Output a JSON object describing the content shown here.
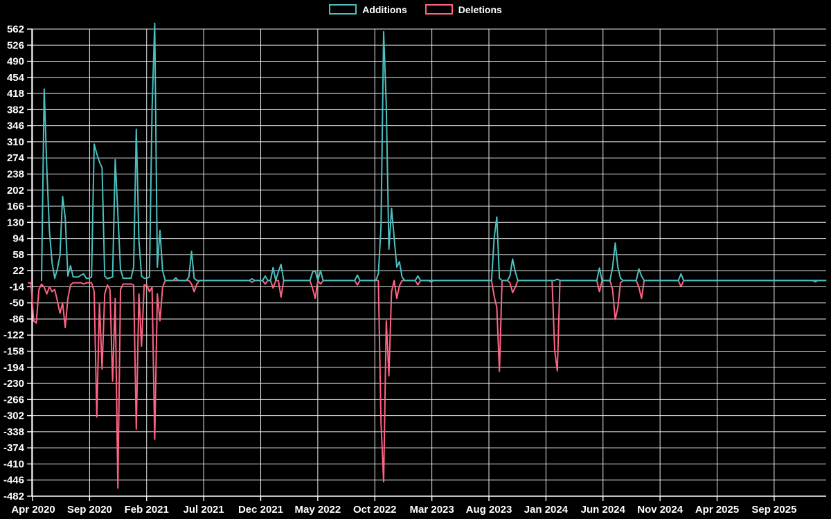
{
  "legend": {
    "items": [
      {
        "label": "Additions",
        "color": "#4bc0c0"
      },
      {
        "label": "Deletions",
        "color": "#ff6384"
      }
    ]
  },
  "axes": {
    "y": {
      "min": -482,
      "max": 562,
      "step": 36,
      "ticks": [
        562,
        526,
        490,
        454,
        418,
        382,
        346,
        310,
        274,
        238,
        202,
        166,
        130,
        94,
        58,
        22,
        -14,
        -50,
        -86,
        -122,
        -158,
        -194,
        -230,
        -266,
        -302,
        -338,
        -374,
        -410,
        -446,
        -482
      ]
    },
    "x": {
      "ticks": [
        "Apr 2020",
        "Sep 2020",
        "Feb 2021",
        "Jul 2021",
        "Dec 2021",
        "May 2022",
        "Oct 2022",
        "Mar 2023",
        "Aug 2023",
        "Jan 2024",
        "Jun 2024",
        "Nov 2024",
        "Apr 2025",
        "Sep 2025"
      ],
      "tick_interval_months": 5
    }
  },
  "chart_data": {
    "type": "line",
    "title": "",
    "xlabel": "",
    "ylabel": "",
    "legend_position": "top",
    "grid": true,
    "background": "#000000",
    "x_axis": {
      "unit": "week",
      "start_date": "2020-03-22",
      "interval_days": 7,
      "total_weeks": 304
    },
    "y_axis": {
      "min": -482,
      "max": 562,
      "tick_step": 36
    },
    "series": [
      {
        "name": "Additions",
        "color": "#4bc0c0",
        "starts_week": 5,
        "default_value": 0,
        "nonzero_points": [
          [
            6,
            428
          ],
          [
            7,
            250
          ],
          [
            8,
            110
          ],
          [
            9,
            40
          ],
          [
            10,
            5
          ],
          [
            11,
            25
          ],
          [
            12,
            56
          ],
          [
            13,
            188
          ],
          [
            14,
            140
          ],
          [
            15,
            10
          ],
          [
            16,
            33
          ],
          [
            17,
            8
          ],
          [
            18,
            8
          ],
          [
            19,
            8
          ],
          [
            20,
            12
          ],
          [
            21,
            15
          ],
          [
            22,
            5
          ],
          [
            23,
            5
          ],
          [
            24,
            8
          ],
          [
            25,
            305
          ],
          [
            26,
            283
          ],
          [
            27,
            265
          ],
          [
            28,
            252
          ],
          [
            29,
            10
          ],
          [
            30,
            4
          ],
          [
            31,
            6
          ],
          [
            32,
            8
          ],
          [
            33,
            270
          ],
          [
            34,
            150
          ],
          [
            35,
            25
          ],
          [
            36,
            5
          ],
          [
            37,
            5
          ],
          [
            38,
            5
          ],
          [
            39,
            5
          ],
          [
            40,
            30
          ],
          [
            41,
            338
          ],
          [
            42,
            90
          ],
          [
            43,
            10
          ],
          [
            44,
            5
          ],
          [
            45,
            5
          ],
          [
            46,
            8
          ],
          [
            47,
            384
          ],
          [
            48,
            575
          ],
          [
            49,
            30
          ],
          [
            50,
            112
          ],
          [
            51,
            22
          ],
          [
            56,
            6
          ],
          [
            61,
            8
          ],
          [
            62,
            65
          ],
          [
            63,
            5
          ],
          [
            85,
            4
          ],
          [
            90,
            10
          ],
          [
            93,
            29
          ],
          [
            95,
            20
          ],
          [
            96,
            36
          ],
          [
            108,
            19
          ],
          [
            109,
            22
          ],
          [
            111,
            22
          ],
          [
            125,
            12
          ],
          [
            133,
            15
          ],
          [
            134,
            120
          ],
          [
            135,
            556
          ],
          [
            136,
            392
          ],
          [
            137,
            70
          ],
          [
            138,
            161
          ],
          [
            139,
            95
          ],
          [
            140,
            30
          ],
          [
            141,
            42
          ],
          [
            142,
            8
          ],
          [
            148,
            10
          ],
          [
            177,
            95
          ],
          [
            178,
            142
          ],
          [
            179,
            5
          ],
          [
            183,
            10
          ],
          [
            184,
            48
          ],
          [
            185,
            20
          ],
          [
            201,
            3
          ],
          [
            217,
            28
          ],
          [
            222,
            30
          ],
          [
            223,
            84
          ],
          [
            224,
            30
          ],
          [
            225,
            5
          ],
          [
            232,
            26
          ],
          [
            233,
            10
          ],
          [
            248,
            15
          ]
        ]
      },
      {
        "name": "Deletions",
        "color": "#ff6384",
        "starts_week": 0,
        "default_value": 0,
        "nonzero_points": [
          [
            0,
            -5
          ],
          [
            1,
            -6
          ],
          [
            2,
            -90
          ],
          [
            3,
            -95
          ],
          [
            4,
            -20
          ],
          [
            5,
            -8
          ],
          [
            6,
            -15
          ],
          [
            7,
            -30
          ],
          [
            8,
            -14
          ],
          [
            9,
            -25
          ],
          [
            10,
            -20
          ],
          [
            11,
            -45
          ],
          [
            12,
            -73
          ],
          [
            13,
            -50
          ],
          [
            14,
            -105
          ],
          [
            15,
            -40
          ],
          [
            16,
            -10
          ],
          [
            17,
            -5
          ],
          [
            18,
            -5
          ],
          [
            19,
            -5
          ],
          [
            20,
            -5
          ],
          [
            21,
            -8
          ],
          [
            22,
            -5
          ],
          [
            23,
            -5
          ],
          [
            24,
            -5
          ],
          [
            25,
            -25
          ],
          [
            26,
            -305
          ],
          [
            27,
            -50
          ],
          [
            28,
            -198
          ],
          [
            29,
            -30
          ],
          [
            30,
            -10
          ],
          [
            31,
            -20
          ],
          [
            32,
            -225
          ],
          [
            33,
            -40
          ],
          [
            34,
            -464
          ],
          [
            35,
            -20
          ],
          [
            36,
            -8
          ],
          [
            37,
            -8
          ],
          [
            38,
            -8
          ],
          [
            39,
            -8
          ],
          [
            40,
            -10
          ],
          [
            41,
            -332
          ],
          [
            42,
            -30
          ],
          [
            43,
            -147
          ],
          [
            44,
            -10
          ],
          [
            45,
            -10
          ],
          [
            46,
            -25
          ],
          [
            47,
            -15
          ],
          [
            48,
            -355
          ],
          [
            49,
            -30
          ],
          [
            50,
            -90
          ],
          [
            51,
            -15
          ],
          [
            62,
            -8
          ],
          [
            63,
            -25
          ],
          [
            64,
            -8
          ],
          [
            85,
            -4
          ],
          [
            90,
            -8
          ],
          [
            93,
            -17
          ],
          [
            96,
            -37
          ],
          [
            108,
            -18
          ],
          [
            109,
            -40
          ],
          [
            111,
            -8
          ],
          [
            125,
            -10
          ],
          [
            134,
            -318
          ],
          [
            135,
            -450
          ],
          [
            136,
            -90
          ],
          [
            137,
            -213
          ],
          [
            138,
            -25
          ],
          [
            140,
            -40
          ],
          [
            141,
            -12
          ],
          [
            148,
            -10
          ],
          [
            153,
            -3
          ],
          [
            177,
            -35
          ],
          [
            178,
            -60
          ],
          [
            179,
            -203
          ],
          [
            183,
            -5
          ],
          [
            184,
            -27
          ],
          [
            185,
            -15
          ],
          [
            200,
            -156
          ],
          [
            201,
            -202
          ],
          [
            217,
            -25
          ],
          [
            222,
            -20
          ],
          [
            223,
            -87
          ],
          [
            224,
            -60
          ],
          [
            225,
            -5
          ],
          [
            232,
            -15
          ],
          [
            233,
            -40
          ],
          [
            248,
            -14
          ],
          [
            299,
            -3
          ]
        ]
      }
    ]
  }
}
